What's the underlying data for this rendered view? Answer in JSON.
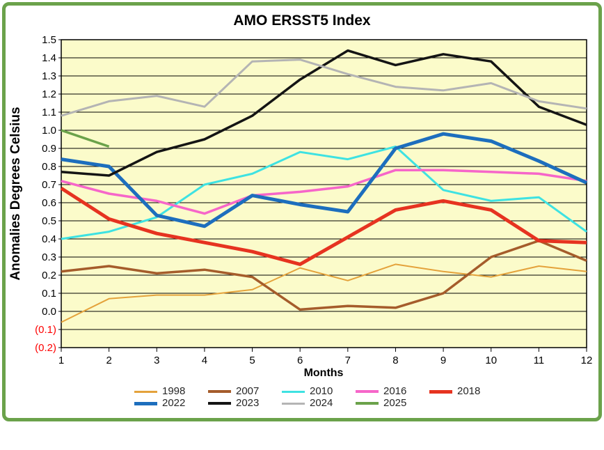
{
  "frame": {
    "border_color": "#6ba24b",
    "background": "#ffffff"
  },
  "title": "AMO ERSST5 Index",
  "axes": {
    "y_label": "Anomalies Degrees Celsius",
    "x_label": "Months",
    "y_tick_labels": [
      "1.5",
      "1.4",
      "1.3",
      "1.2",
      "1.1",
      "1.0",
      "0.9",
      "0.8",
      "0.7",
      "0.6",
      "0.5",
      "0.4",
      "0.3",
      "0.2",
      "0.1",
      "0.0",
      "(0.1)",
      "(0.2)"
    ],
    "y_tick_values": [
      1.5,
      1.4,
      1.3,
      1.2,
      1.1,
      1.0,
      0.9,
      0.8,
      0.7,
      0.6,
      0.5,
      0.4,
      0.3,
      0.2,
      0.1,
      0.0,
      -0.1,
      -0.2
    ],
    "negative_tick_color": "#fe0000",
    "x_tick_labels": [
      "1",
      "2",
      "3",
      "4",
      "5",
      "6",
      "7",
      "8",
      "9",
      "10",
      "11",
      "12"
    ]
  },
  "chart_data": {
    "type": "line",
    "title": "AMO ERSST5 Index",
    "xlabel": "Months",
    "ylabel": "Anomalies Degrees Celsius",
    "x": [
      1,
      2,
      3,
      4,
      5,
      6,
      7,
      8,
      9,
      10,
      11,
      12
    ],
    "ylim": [
      -0.2,
      1.5
    ],
    "xlim": [
      1,
      12
    ],
    "grid": "horizontal, every 0.1",
    "plot_background": "#fbfbca",
    "legend_position": "bottom",
    "series": [
      {
        "name": "1998",
        "color": "#e4a23b",
        "width": 2,
        "values": [
          -0.06,
          0.07,
          0.09,
          0.09,
          0.12,
          0.24,
          0.17,
          0.26,
          0.22,
          0.19,
          0.25,
          0.22
        ]
      },
      {
        "name": "2007",
        "color": "#a55c2b",
        "width": 3.5,
        "values": [
          0.22,
          0.25,
          0.21,
          0.23,
          0.19,
          0.01,
          0.03,
          0.02,
          0.1,
          0.3,
          0.39,
          0.28
        ]
      },
      {
        "name": "2010",
        "color": "#3ee2e2",
        "width": 3,
        "values": [
          0.4,
          0.44,
          0.52,
          0.7,
          0.76,
          0.88,
          0.84,
          0.91,
          0.67,
          0.61,
          0.63,
          0.44
        ]
      },
      {
        "name": "2016",
        "color": "#f666c9",
        "width": 3.5,
        "values": [
          0.72,
          0.65,
          0.61,
          0.54,
          0.64,
          0.66,
          0.69,
          0.78,
          0.78,
          0.77,
          0.76,
          0.72
        ]
      },
      {
        "name": "2018",
        "color": "#e63320",
        "width": 5,
        "values": [
          0.68,
          0.51,
          0.43,
          0.38,
          0.33,
          0.26,
          0.41,
          0.56,
          0.61,
          0.56,
          0.39,
          0.38
        ]
      },
      {
        "name": "2022",
        "color": "#1d6ebd",
        "width": 5,
        "values": [
          0.84,
          0.8,
          0.53,
          0.47,
          0.64,
          0.59,
          0.55,
          0.9,
          0.98,
          0.94,
          0.83,
          0.71
        ]
      },
      {
        "name": "2023",
        "color": "#141414",
        "width": 3.5,
        "values": [
          0.77,
          0.75,
          0.88,
          0.95,
          1.08,
          1.28,
          1.44,
          1.36,
          1.42,
          1.38,
          1.13,
          1.03
        ]
      },
      {
        "name": "2024",
        "color": "#b4b4b4",
        "width": 3,
        "values": [
          1.08,
          1.16,
          1.19,
          1.13,
          1.38,
          1.39,
          1.31,
          1.24,
          1.22,
          1.26,
          1.16,
          1.12
        ]
      },
      {
        "name": "2025",
        "color": "#6ba24a",
        "width": 3.5,
        "values": [
          1.0,
          0.91,
          null,
          null,
          null,
          null,
          null,
          null,
          null,
          null,
          null,
          null
        ]
      }
    ]
  },
  "legend": {
    "entries": [
      "1998",
      "2007",
      "2010",
      "2016",
      "2018",
      "2022",
      "2023",
      "2024",
      "2025"
    ]
  }
}
